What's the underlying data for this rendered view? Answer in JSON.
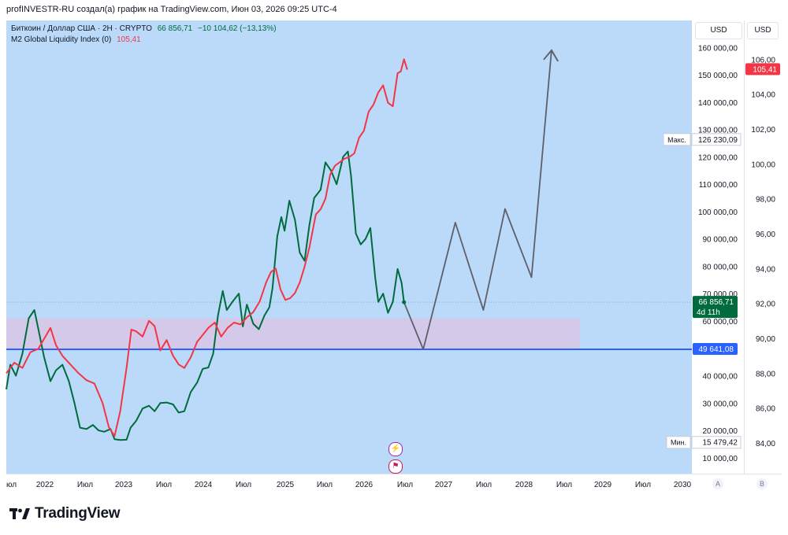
{
  "header": {
    "text": "profINVESTR-RU создал(а) график на TradingView.com, Июн 03, 2026 09:25 UTC-4"
  },
  "legend": {
    "symbol": "Биткоин / Доллар США · 2Н · CRYPTO",
    "price": "66 856,71",
    "change": "−10 104,62 (−13,13%)",
    "m2_name": "M2 Global Liquidity Index (0)",
    "m2_value": "105,41"
  },
  "buttons": {
    "usd_left": "USD",
    "usd_right": "USD",
    "a": "A",
    "b": "B"
  },
  "price_scale": {
    "labels": [
      "160 000,00",
      "150 000,00",
      "140 000,00",
      "130 000,00",
      "120 000,00",
      "110 000,00",
      "100 000,00",
      "90 000,00",
      "80 000,00",
      "70 000,00",
      "60 000,00",
      "40 000,00",
      "30 000,00",
      "20 000,00",
      "10 000,00"
    ],
    "max_label": "Макс.",
    "max_value": "126 230,09",
    "min_label": "Мин.",
    "min_value": "15 479,42",
    "current_price": "66 856,71",
    "countdown": "4d 11h",
    "support_value": "49 641,08"
  },
  "m2_scale": {
    "labels": [
      "106,00",
      "104,00",
      "102,00",
      "100,00",
      "98,00",
      "96,00",
      "94,00",
      "92,00",
      "90,00",
      "88,00",
      "86,00",
      "84,00"
    ],
    "current_value": "105,41"
  },
  "time_axis": {
    "labels": [
      "юл",
      "2022",
      "Июл",
      "2023",
      "Июл",
      "2024",
      "Июл",
      "2025",
      "Июл",
      "2026",
      "Июл",
      "2027",
      "Июл",
      "2028",
      "Июл",
      "2029",
      "Июл",
      "2030"
    ]
  },
  "colors": {
    "plot_bg": "#bbdaf9",
    "btc_line": "#006b3d",
    "m2_line": "#f23645",
    "projection": "#5d606b",
    "support": "#2962ff",
    "zone": "#d9c6e8",
    "current_price_bg": "#006b3d",
    "m2_badge_bg": "#f23645",
    "support_badge_bg": "#2962ff"
  },
  "footer": {
    "brand": "TradingView"
  },
  "chart_data": {
    "type": "line",
    "title": "",
    "x_unit": "year",
    "xlim": [
      2021.5,
      2030.05
    ],
    "series": [
      {
        "name": "Биткоин / Доллар США",
        "axis": "price",
        "points": [
          [
            2021.5,
            35000
          ],
          [
            2021.55,
            44000
          ],
          [
            2021.62,
            40000
          ],
          [
            2021.7,
            48000
          ],
          [
            2021.78,
            61000
          ],
          [
            2021.85,
            64000
          ],
          [
            2021.9,
            57000
          ],
          [
            2021.97,
            47000
          ],
          [
            2022.05,
            38000
          ],
          [
            2022.12,
            42000
          ],
          [
            2022.2,
            44000
          ],
          [
            2022.28,
            38000
          ],
          [
            2022.35,
            30000
          ],
          [
            2022.42,
            21000
          ],
          [
            2022.5,
            20500
          ],
          [
            2022.58,
            22000
          ],
          [
            2022.65,
            20000
          ],
          [
            2022.72,
            19500
          ],
          [
            2022.8,
            20500
          ],
          [
            2022.85,
            16800
          ],
          [
            2022.92,
            16500
          ],
          [
            2023.0,
            16600
          ],
          [
            2023.05,
            21000
          ],
          [
            2023.12,
            23500
          ],
          [
            2023.2,
            28000
          ],
          [
            2023.28,
            29000
          ],
          [
            2023.35,
            27000
          ],
          [
            2023.42,
            30000
          ],
          [
            2023.5,
            30200
          ],
          [
            2023.58,
            29500
          ],
          [
            2023.65,
            26500
          ],
          [
            2023.72,
            27000
          ],
          [
            2023.8,
            34000
          ],
          [
            2023.88,
            37500
          ],
          [
            2023.95,
            42500
          ],
          [
            2024.02,
            43000
          ],
          [
            2024.08,
            48000
          ],
          [
            2024.14,
            62000
          ],
          [
            2024.2,
            71000
          ],
          [
            2024.25,
            64000
          ],
          [
            2024.32,
            67000
          ],
          [
            2024.4,
            70000
          ],
          [
            2024.45,
            58000
          ],
          [
            2024.5,
            66000
          ],
          [
            2024.58,
            59000
          ],
          [
            2024.65,
            57000
          ],
          [
            2024.72,
            62000
          ],
          [
            2024.78,
            65000
          ],
          [
            2024.82,
            72000
          ],
          [
            2024.88,
            91000
          ],
          [
            2024.93,
            98000
          ],
          [
            2024.97,
            93000
          ],
          [
            2025.03,
            104000
          ],
          [
            2025.1,
            97000
          ],
          [
            2025.16,
            85000
          ],
          [
            2025.22,
            82000
          ],
          [
            2025.28,
            95000
          ],
          [
            2025.34,
            105000
          ],
          [
            2025.42,
            108000
          ],
          [
            2025.48,
            118000
          ],
          [
            2025.55,
            115000
          ],
          [
            2025.62,
            110000
          ],
          [
            2025.7,
            120000
          ],
          [
            2025.76,
            122000
          ],
          [
            2025.8,
            113000
          ],
          [
            2025.86,
            92000
          ],
          [
            2025.92,
            88000
          ],
          [
            2025.98,
            90000
          ],
          [
            2026.04,
            94000
          ],
          [
            2026.1,
            76000
          ],
          [
            2026.14,
            67000
          ],
          [
            2026.2,
            70000
          ],
          [
            2026.26,
            63000
          ],
          [
            2026.32,
            67000
          ],
          [
            2026.38,
            79000
          ],
          [
            2026.43,
            74000
          ],
          [
            2026.46,
            66856.71
          ]
        ]
      },
      {
        "name": "M2 Global Liquidity Index",
        "axis": "m2",
        "points": [
          [
            2021.5,
            88.0
          ],
          [
            2021.6,
            88.6
          ],
          [
            2021.7,
            88.3
          ],
          [
            2021.8,
            89.2
          ],
          [
            2021.9,
            89.4
          ],
          [
            2022.0,
            90.2
          ],
          [
            2022.05,
            90.6
          ],
          [
            2022.12,
            89.6
          ],
          [
            2022.2,
            89.0
          ],
          [
            2022.3,
            88.5
          ],
          [
            2022.4,
            88.0
          ],
          [
            2022.5,
            87.6
          ],
          [
            2022.6,
            87.4
          ],
          [
            2022.7,
            86.3
          ],
          [
            2022.78,
            84.9
          ],
          [
            2022.85,
            84.4
          ],
          [
            2022.92,
            85.8
          ],
          [
            2023.0,
            88.3
          ],
          [
            2023.06,
            90.5
          ],
          [
            2023.12,
            90.4
          ],
          [
            2023.2,
            90.1
          ],
          [
            2023.28,
            91.0
          ],
          [
            2023.35,
            90.7
          ],
          [
            2023.42,
            89.3
          ],
          [
            2023.5,
            89.9
          ],
          [
            2023.58,
            89.0
          ],
          [
            2023.65,
            88.5
          ],
          [
            2023.72,
            88.3
          ],
          [
            2023.8,
            88.9
          ],
          [
            2023.88,
            89.8
          ],
          [
            2023.95,
            90.2
          ],
          [
            2024.02,
            90.6
          ],
          [
            2024.1,
            90.9
          ],
          [
            2024.18,
            90.1
          ],
          [
            2024.26,
            90.6
          ],
          [
            2024.34,
            90.9
          ],
          [
            2024.42,
            90.8
          ],
          [
            2024.5,
            91.2
          ],
          [
            2024.58,
            91.5
          ],
          [
            2024.66,
            92.1
          ],
          [
            2024.74,
            93.2
          ],
          [
            2024.8,
            93.8
          ],
          [
            2024.86,
            94.0
          ],
          [
            2024.92,
            92.8
          ],
          [
            2024.98,
            92.2
          ],
          [
            2025.04,
            92.3
          ],
          [
            2025.1,
            92.6
          ],
          [
            2025.16,
            93.2
          ],
          [
            2025.22,
            94.1
          ],
          [
            2025.28,
            95.2
          ],
          [
            2025.36,
            97.1
          ],
          [
            2025.42,
            97.4
          ],
          [
            2025.48,
            98.0
          ],
          [
            2025.54,
            99.4
          ],
          [
            2025.6,
            99.9
          ],
          [
            2025.66,
            100.1
          ],
          [
            2025.72,
            100.3
          ],
          [
            2025.78,
            100.4
          ],
          [
            2025.84,
            100.6
          ],
          [
            2025.9,
            101.5
          ],
          [
            2025.96,
            101.9
          ],
          [
            2026.02,
            103.0
          ],
          [
            2026.08,
            103.4
          ],
          [
            2026.14,
            104.1
          ],
          [
            2026.2,
            104.5
          ],
          [
            2026.26,
            103.5
          ],
          [
            2026.32,
            103.3
          ],
          [
            2026.38,
            105.2
          ],
          [
            2026.42,
            105.3
          ],
          [
            2026.46,
            106.0
          ],
          [
            2026.5,
            105.41
          ]
        ]
      },
      {
        "name": "",
        "axis": "price",
        "type": "projection",
        "points": [
          [
            2026.46,
            66856.71
          ],
          [
            2026.7,
            49641.08
          ],
          [
            2027.1,
            96000
          ],
          [
            2027.45,
            64000
          ],
          [
            2027.72,
            101000
          ],
          [
            2028.05,
            76000
          ],
          [
            2028.3,
            159000
          ],
          [
            2028.38,
            155000
          ]
        ]
      }
    ],
    "price_axis": {
      "min": 5000,
      "max": 170000
    },
    "m2_axis": {
      "min": 83,
      "max": 107
    },
    "support_level": 49641.08,
    "zone": {
      "from_year": 2021.5,
      "to_year": 2028.65,
      "low": 49641.08,
      "high": 61000
    },
    "grid": false,
    "legend_position": "top-left"
  }
}
